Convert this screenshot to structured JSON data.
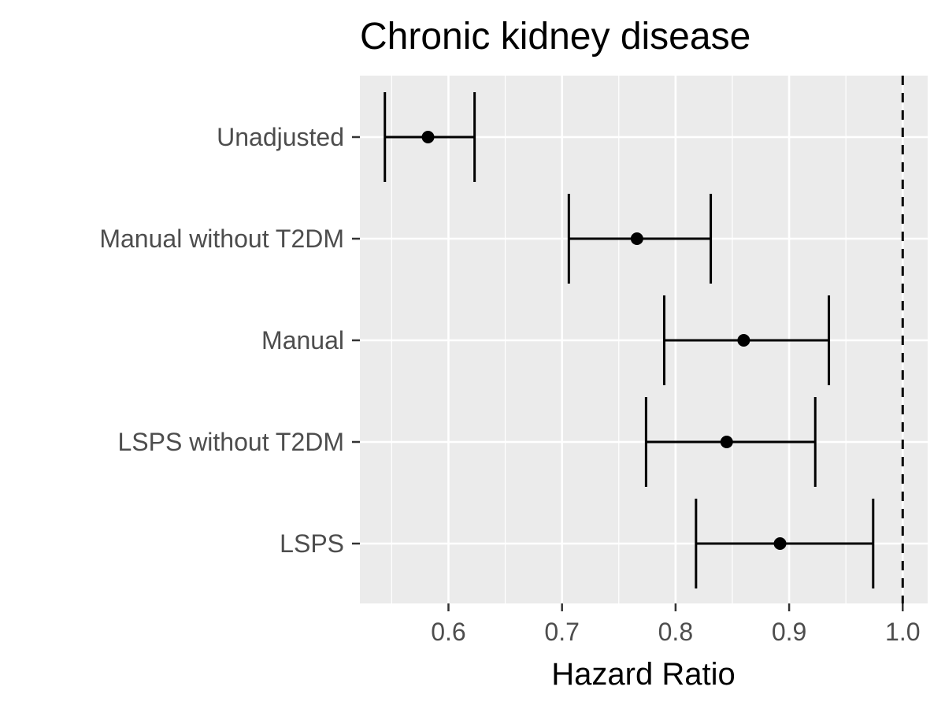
{
  "chart_data": {
    "type": "forest",
    "title": "Chronic kidney disease",
    "xlabel": "Hazard Ratio",
    "ylabel": "",
    "xlim": [
      0.522,
      1.022
    ],
    "x_ticks": [
      0.6,
      0.7,
      0.8,
      0.9,
      1.0
    ],
    "x_tick_labels": [
      "0.6",
      "0.7",
      "0.8",
      "0.9",
      "1.0"
    ],
    "reference_line": 1.0,
    "categories": [
      "Unadjusted",
      "Manual without T2DM",
      "Manual",
      "LSPS without T2DM",
      "LSPS"
    ],
    "estimates": [
      0.582,
      0.766,
      0.86,
      0.845,
      0.892
    ],
    "lower": [
      0.544,
      0.706,
      0.79,
      0.774,
      0.818
    ],
    "upper": [
      0.623,
      0.831,
      0.935,
      0.923,
      0.974
    ],
    "grid": true
  },
  "colors": {
    "panel_background": "#ebebeb",
    "grid": "#ffffff",
    "marks": "#000000",
    "tick_text": "#4d4d4d"
  }
}
